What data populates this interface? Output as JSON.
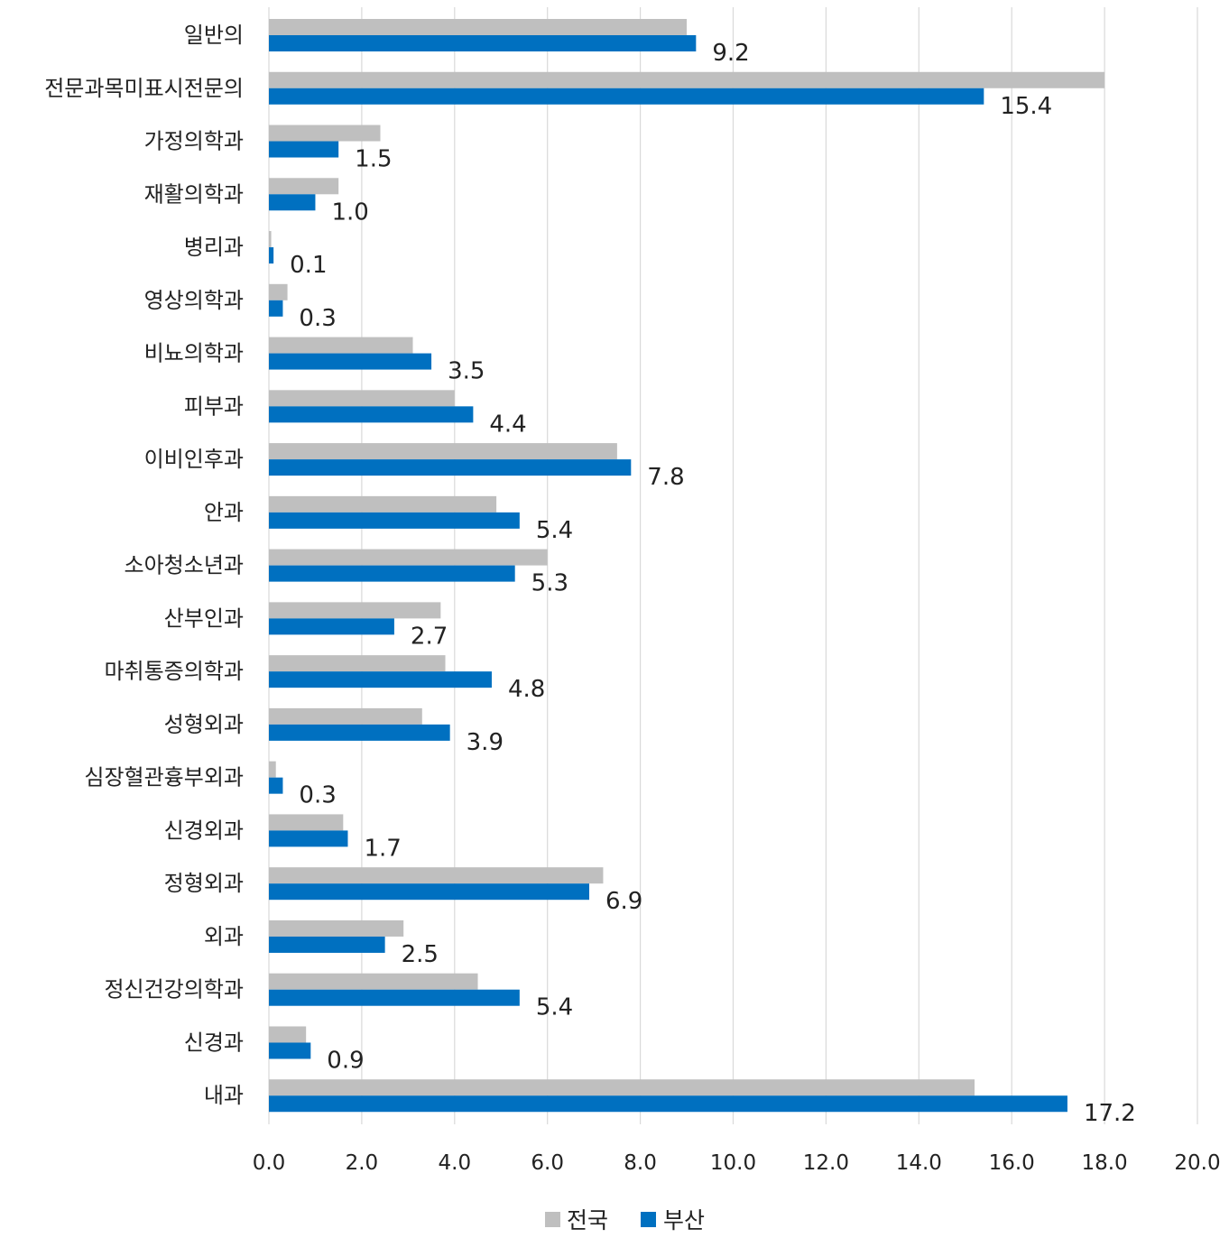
{
  "chart_data": {
    "type": "bar",
    "orientation": "horizontal",
    "categories": [
      "일반의",
      "전문과목미표시전문의",
      "가정의학과",
      "재활의학과",
      "병리과",
      "영상의학과",
      "비뇨의학과",
      "피부과",
      "이비인후과",
      "안과",
      "소아청소년과",
      "산부인과",
      "마취통증의학과",
      "성형외과",
      "심장혈관흉부외과",
      "신경외과",
      "정형외과",
      "외과",
      "정신건강의학과",
      "신경과",
      "내과"
    ],
    "series": [
      {
        "name": "전국",
        "color": "#bfbfbf",
        "values": [
          9.0,
          18.0,
          2.4,
          1.5,
          0.05,
          0.4,
          3.1,
          4.0,
          7.5,
          4.9,
          6.0,
          3.7,
          3.8,
          3.3,
          0.15,
          1.6,
          7.2,
          2.9,
          4.5,
          0.8,
          15.2
        ]
      },
      {
        "name": "부산",
        "color": "#0070c0",
        "values": [
          9.2,
          15.4,
          1.5,
          1.0,
          0.1,
          0.3,
          3.5,
          4.4,
          7.8,
          5.4,
          5.3,
          2.7,
          4.8,
          3.9,
          0.3,
          1.7,
          6.9,
          2.5,
          5.4,
          0.9,
          17.2
        ]
      }
    ],
    "data_labels": [
      "9.2",
      "15.4",
      "1.5",
      "1.0",
      "0.1",
      "0.3",
      "3.5",
      "4.4",
      "7.8",
      "5.4",
      "5.3",
      "2.7",
      "4.8",
      "3.9",
      "0.3",
      "1.7",
      "6.9",
      "2.5",
      "5.4",
      "0.9",
      "17.2"
    ],
    "xlim": [
      0,
      20
    ],
    "x_ticks": [
      "0.0",
      "2.0",
      "4.0",
      "6.0",
      "8.0",
      "10.0",
      "12.0",
      "14.0",
      "16.0",
      "18.0",
      "20.0"
    ],
    "x_tick_values": [
      0,
      2,
      4,
      6,
      8,
      10,
      12,
      14,
      16,
      18,
      20
    ],
    "grid": "vertical",
    "legend_position": "bottom-center",
    "title": "",
    "xlabel": "",
    "ylabel": ""
  }
}
